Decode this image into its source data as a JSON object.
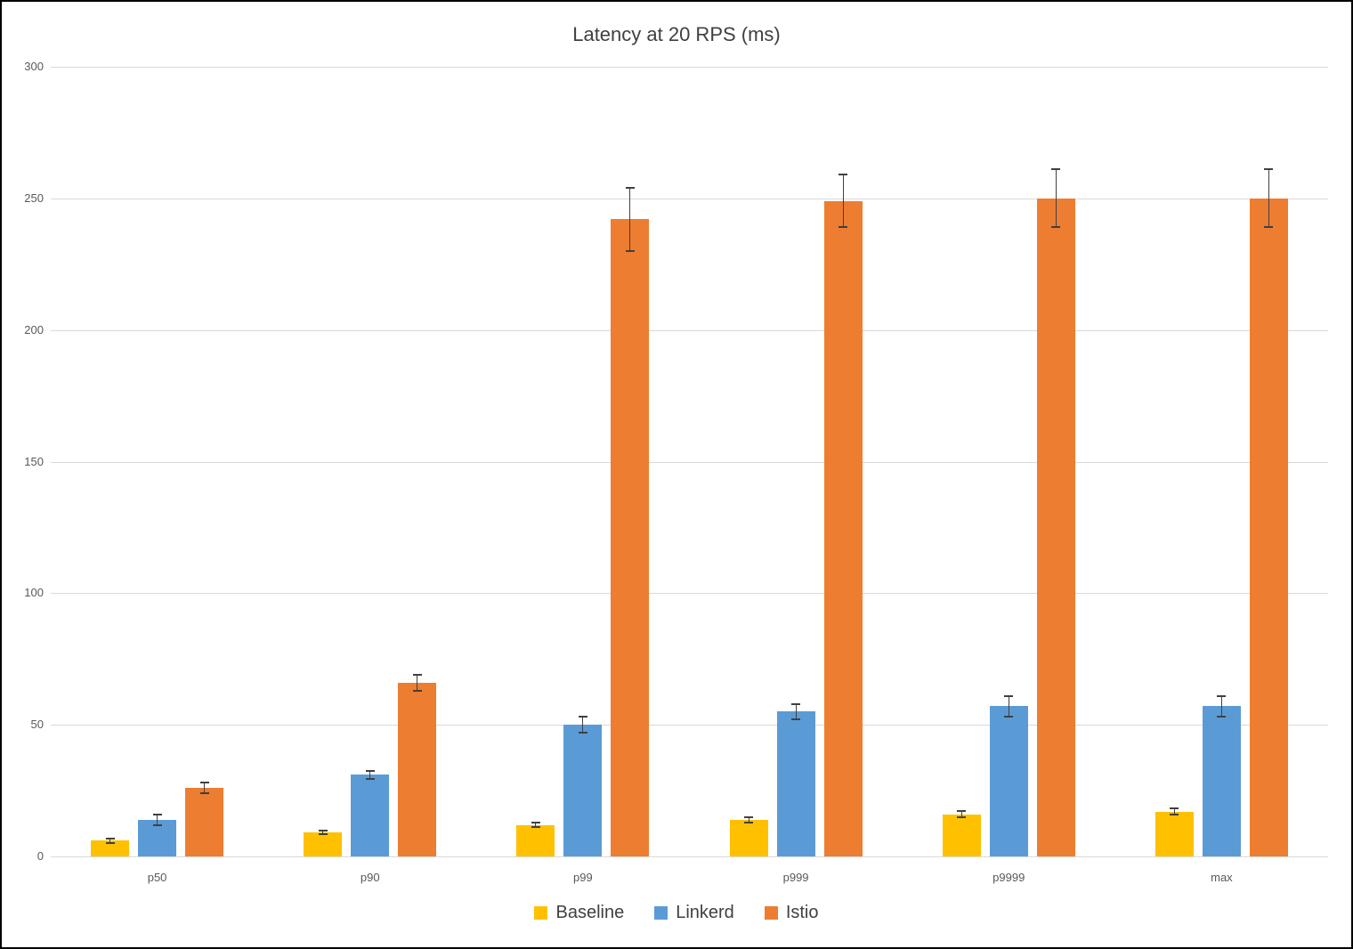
{
  "chart_data": {
    "type": "bar",
    "title": "Latency at 20 RPS (ms)",
    "categories": [
      "p50",
      "p90",
      "p99",
      "p999",
      "p9999",
      "max"
    ],
    "series": [
      {
        "name": "Baseline",
        "color": "#FFC000",
        "values": [
          6,
          9,
          12,
          14,
          16,
          17
        ],
        "errors": [
          0.8,
          0.7,
          1,
          1,
          1.2,
          1.2
        ]
      },
      {
        "name": "Linkerd",
        "color": "#5B9BD5",
        "values": [
          14,
          31,
          50,
          55,
          57,
          57
        ],
        "errors": [
          2,
          1.5,
          3,
          3,
          4,
          4
        ]
      },
      {
        "name": "Istio",
        "color": "#ED7D31",
        "values": [
          26,
          66,
          242,
          249,
          250,
          250
        ],
        "errors": [
          2,
          3,
          12,
          10,
          11,
          11
        ]
      }
    ],
    "ylim": [
      0,
      300
    ],
    "ytick_step": 50,
    "grid": true,
    "legend_position": "bottom",
    "xlabel": "",
    "ylabel": ""
  },
  "colors": {
    "background": "#ffffff",
    "border": "#000000",
    "gridline": "#d9d9d9",
    "axis_text": "#595959",
    "title_text": "#404040",
    "error_bar": "#404040"
  }
}
